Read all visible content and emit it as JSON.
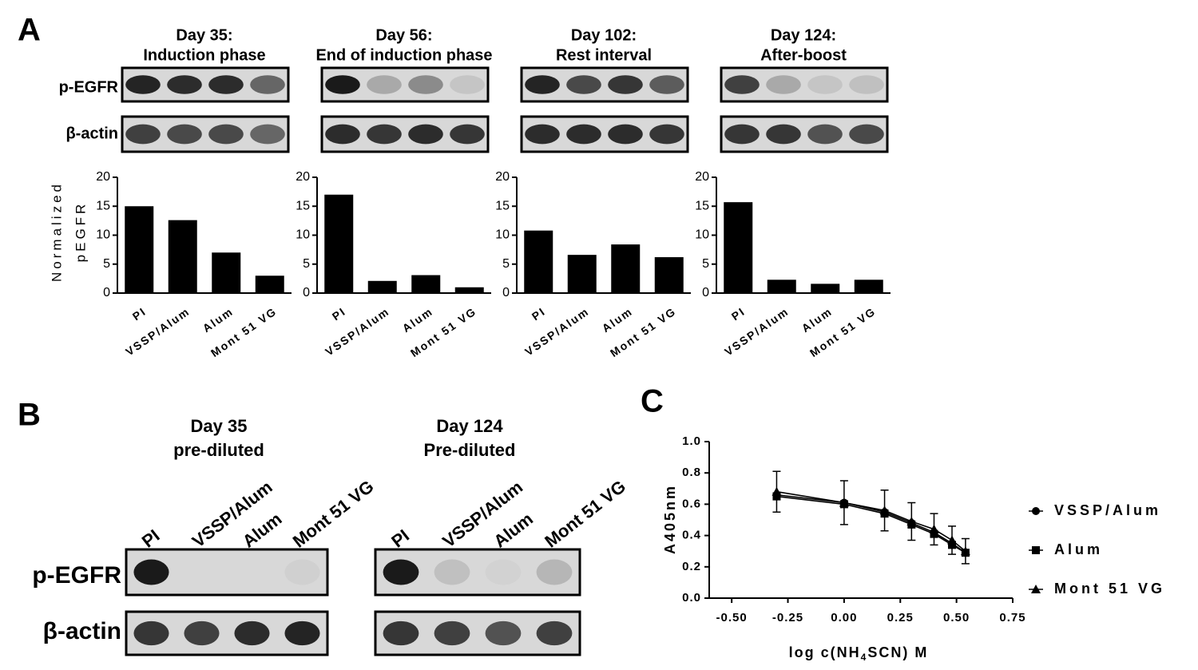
{
  "panel_labels": [
    "A",
    "B",
    "C"
  ],
  "blot_row_labels_a": [
    "p-EGFR",
    "β-actin"
  ],
  "panel_b": {
    "row_labels": [
      "p-EGFR",
      "β-actin"
    ],
    "blots": [
      {
        "title": [
          "Day 35",
          "pre-diluted"
        ],
        "lanes": [
          "PI",
          "VSSP/Alum",
          "Alum",
          "Mont 51 VG"
        ]
      },
      {
        "title": [
          "Day 124",
          "Pre-diluted"
        ],
        "lanes": [
          "PI",
          "VSSP/Alum",
          "Alum",
          "Mont 51 VG"
        ]
      }
    ]
  },
  "chart_data": [
    {
      "type": "bar",
      "title": [
        "Day 35:",
        "Induction phase"
      ],
      "ylabel": [
        "Normalized",
        "pEGFR"
      ],
      "categories": [
        "PI",
        "VSSP/Alum",
        "Alum",
        "Mont 51 VG"
      ],
      "values": [
        15,
        12.6,
        7,
        3
      ],
      "color": "#000000",
      "ylim": [
        0,
        20
      ],
      "yticks": [
        0,
        5,
        10,
        15,
        20
      ]
    },
    {
      "type": "bar",
      "title": [
        "Day 56:",
        "End of induction phase"
      ],
      "categories": [
        "PI",
        "VSSP/Alum",
        "Alum",
        "Mont 51 VG"
      ],
      "values": [
        17,
        2.1,
        3.1,
        1
      ],
      "color": "#000000",
      "ylim": [
        0,
        20
      ],
      "yticks": [
        0,
        5,
        10,
        15,
        20
      ]
    },
    {
      "type": "bar",
      "title": [
        "Day 102:",
        "Rest interval"
      ],
      "categories": [
        "PI",
        "VSSP/Alum",
        "Alum",
        "Mont 51 VG"
      ],
      "values": [
        10.8,
        6.6,
        8.4,
        6.2
      ],
      "color": "#000000",
      "ylim": [
        0,
        20
      ],
      "yticks": [
        0,
        5,
        10,
        15,
        20
      ]
    },
    {
      "type": "bar",
      "title": [
        "Day 124:",
        "After-boost"
      ],
      "categories": [
        "PI",
        "VSSP/Alum",
        "Alum",
        "Mont 51 VG"
      ],
      "values": [
        15.7,
        2.3,
        1.6,
        2.3
      ],
      "color": "#000000",
      "ylim": [
        0,
        20
      ],
      "yticks": [
        0,
        5,
        10,
        15,
        20
      ]
    },
    {
      "type": "line",
      "xlabel": [
        "log c(NH",
        "4",
        "SCN) M"
      ],
      "ylabel": "A405nm",
      "x": [
        -0.3,
        0,
        0.18,
        0.3,
        0.4,
        0.48,
        0.54
      ],
      "series": [
        {
          "name": "VSSP/Alum",
          "color": "#000000",
          "marker": "circle",
          "values": [
            0.66,
            0.61,
            0.55,
            0.48,
            0.42,
            0.35,
            0.29
          ]
        },
        {
          "name": "Alum",
          "color": "#000000",
          "marker": "square",
          "values": [
            0.65,
            0.6,
            0.54,
            0.47,
            0.41,
            0.34,
            0.29
          ]
        },
        {
          "name": "Mont 51 VG",
          "color": "#000000",
          "marker": "triangle",
          "values": [
            0.68,
            0.61,
            0.56,
            0.49,
            0.44,
            0.37,
            0.3
          ],
          "errors": [
            0.13,
            0.14,
            0.13,
            0.12,
            0.1,
            0.09,
            0.08
          ]
        }
      ],
      "xlim": [
        -0.6,
        0.75
      ],
      "xticks": [
        {
          "value": -0.5,
          "label": "-0.50"
        },
        {
          "value": -0.25,
          "label": "-0.25"
        },
        {
          "value": 0,
          "label": "0.00"
        },
        {
          "value": 0.25,
          "label": "0.25"
        },
        {
          "value": 0.5,
          "label": "0.50"
        },
        {
          "value": 0.75,
          "label": "0.75"
        }
      ],
      "ylim": [
        0,
        1
      ],
      "yticks": [
        {
          "value": 0,
          "label": "0.0"
        },
        {
          "value": 0.2,
          "label": "0.2"
        },
        {
          "value": 0.4,
          "label": "0.4"
        },
        {
          "value": 0.6,
          "label": "0.6"
        },
        {
          "value": 0.8,
          "label": "0.8"
        },
        {
          "value": 1,
          "label": "1.0"
        }
      ],
      "legend": "right"
    }
  ]
}
